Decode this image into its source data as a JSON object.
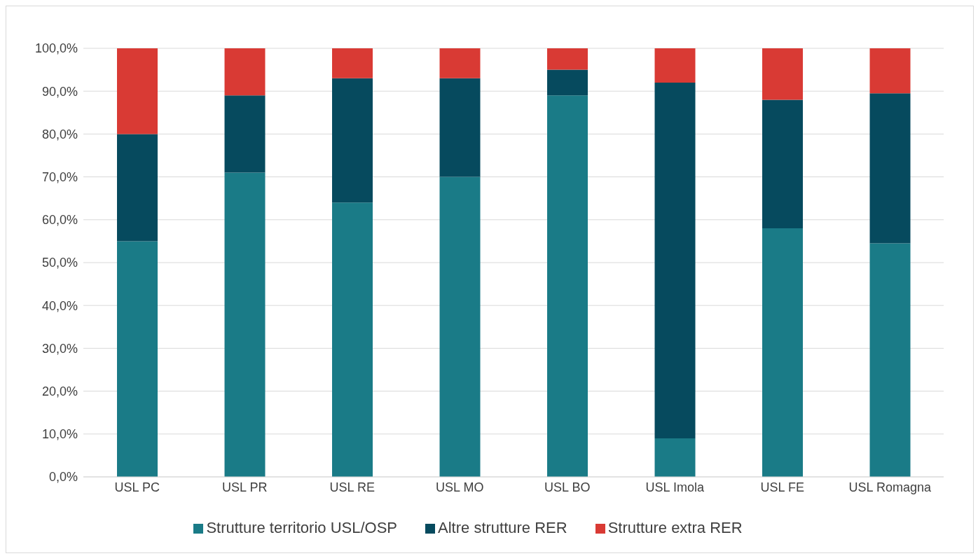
{
  "chart_data": {
    "type": "bar",
    "stacked": true,
    "categories": [
      "USL PC",
      "USL PR",
      "USL RE",
      "USL MO",
      "USL BO",
      "USL Imola",
      "USL FE",
      "USL Romagna"
    ],
    "series": [
      {
        "name": "Strutture territorio USL/OSP",
        "color": "#1a7b87",
        "values": [
          55,
          71,
          64,
          70,
          89,
          9,
          58,
          54.5
        ]
      },
      {
        "name": "Altre strutture RER",
        "color": "#064a5e",
        "values": [
          25,
          18,
          29,
          23,
          6,
          83,
          30,
          35
        ]
      },
      {
        "name": "Strutture extra RER",
        "color": "#d93a34",
        "values": [
          20,
          11,
          7,
          7,
          5,
          8,
          12,
          10.5
        ]
      }
    ],
    "ylim": [
      0,
      100
    ],
    "yticks": [
      {
        "value": 0,
        "label": "0,0%"
      },
      {
        "value": 10,
        "label": "10,0%"
      },
      {
        "value": 20,
        "label": "20,0%"
      },
      {
        "value": 30,
        "label": "30,0%"
      },
      {
        "value": 40,
        "label": "40,0%"
      },
      {
        "value": 50,
        "label": "50,0%"
      },
      {
        "value": 60,
        "label": "60,0%"
      },
      {
        "value": 70,
        "label": "70,0%"
      },
      {
        "value": 80,
        "label": "80,0%"
      },
      {
        "value": 90,
        "label": "90,0%"
      },
      {
        "value": 100,
        "label": "100,0%"
      }
    ],
    "grid": "y",
    "legend": "bottom"
  }
}
